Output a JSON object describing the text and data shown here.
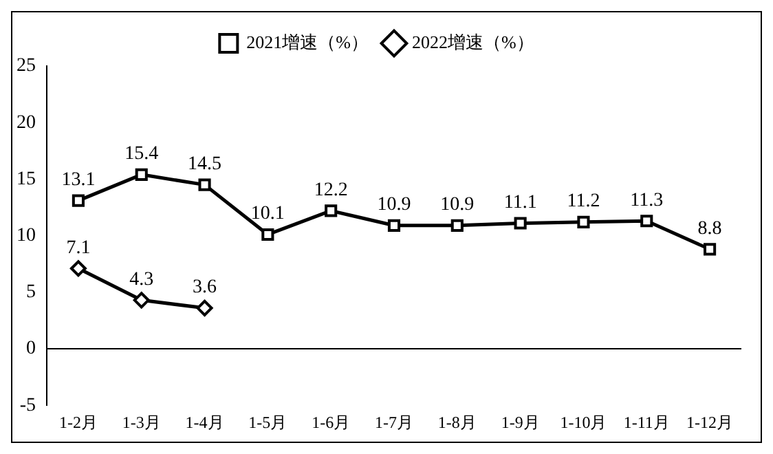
{
  "chart_data": {
    "type": "line",
    "categories": [
      "1-2月",
      "1-3月",
      "1-4月",
      "1-5月",
      "1-6月",
      "1-7月",
      "1-8月",
      "1-9月",
      "1-10月",
      "1-11月",
      "1-12月"
    ],
    "series": [
      {
        "name": "2021增速（%）",
        "color": "#000000",
        "marker": "square",
        "values": [
          13.1,
          15.4,
          14.5,
          10.1,
          12.2,
          10.9,
          10.9,
          11.1,
          11.2,
          11.3,
          8.8
        ]
      },
      {
        "name": "2022增速（%）",
        "color": "#000000",
        "marker": "diamond",
        "values": [
          7.1,
          4.3,
          3.6,
          null,
          null,
          null,
          null,
          null,
          null,
          null,
          null
        ]
      }
    ],
    "ylim": [
      -5,
      25
    ],
    "yticks": [
      -5,
      0,
      5,
      10,
      15,
      20,
      25
    ],
    "grid": false,
    "legend": "top",
    "data_labels": true,
    "line_style": "solid",
    "ref_lines": [
      {
        "axis": "y",
        "value": 0,
        "color": "#000000"
      }
    ]
  }
}
